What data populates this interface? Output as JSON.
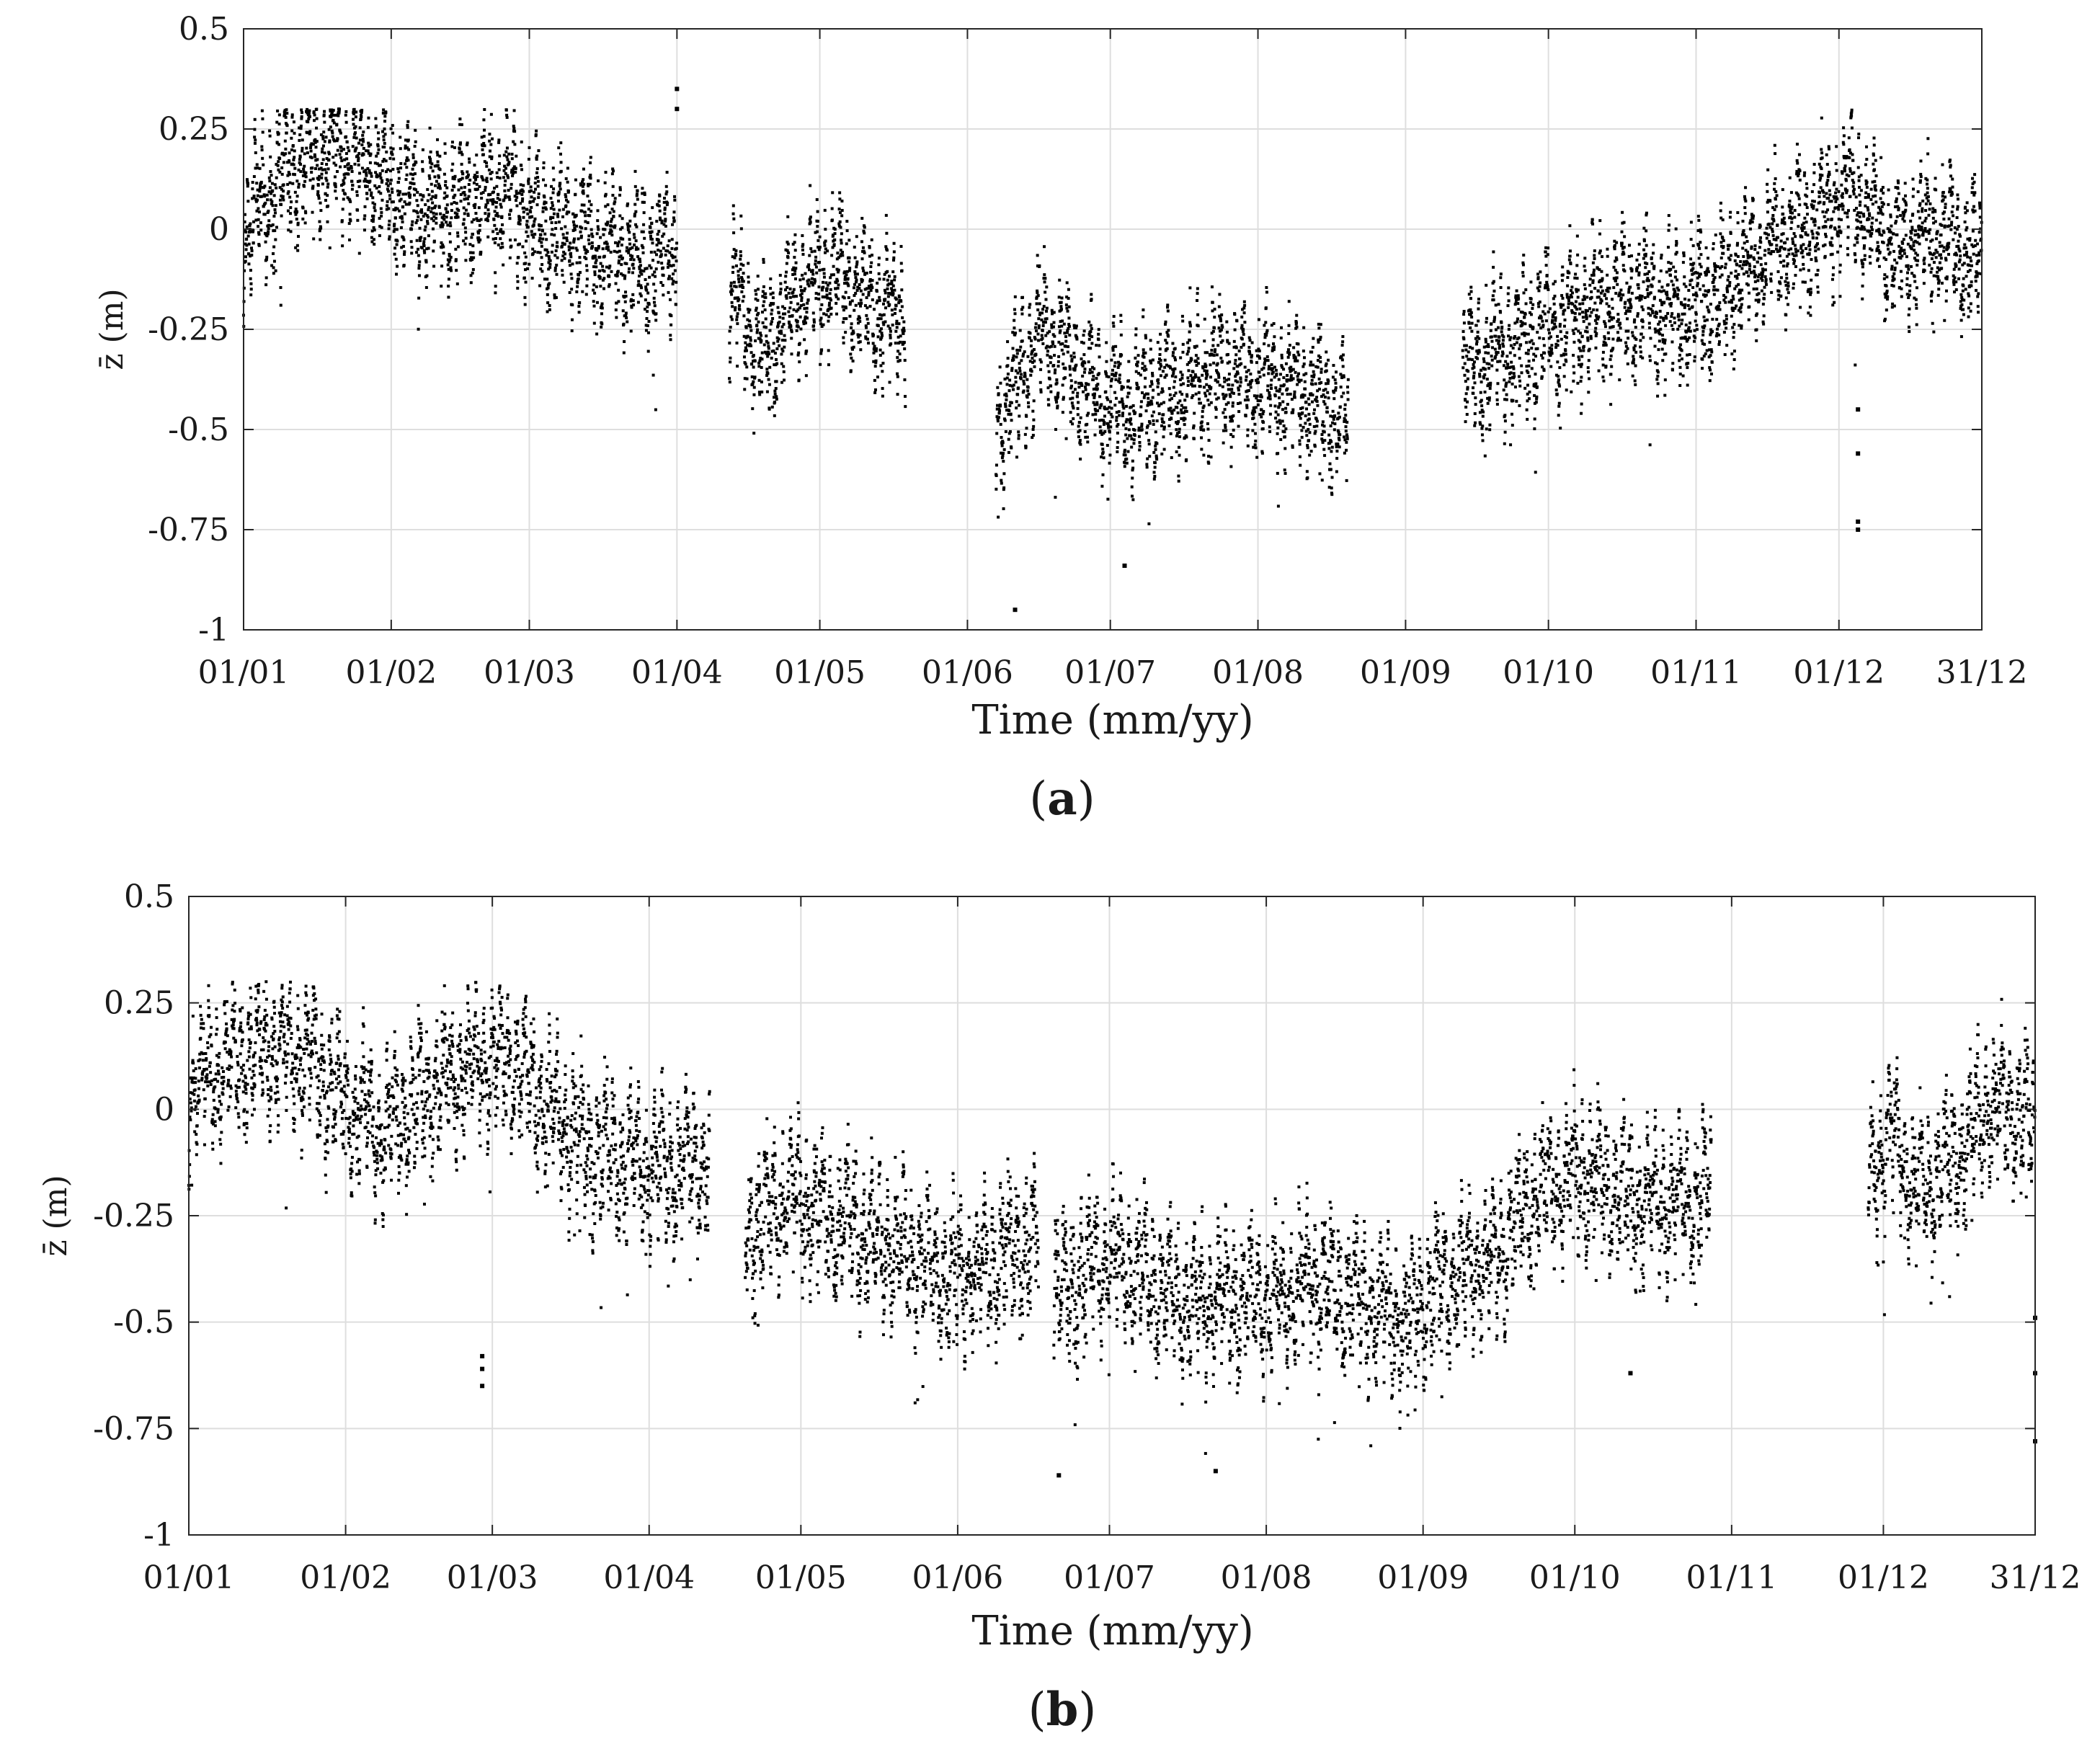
{
  "chart_data": [
    {
      "type": "scatter",
      "panel_label": "a",
      "xlabel": "Time (mm/yy)",
      "ylabel": "z̄ (m)",
      "xlim": [
        "2020-01-01",
        "2020-12-31"
      ],
      "ylim": [
        -1,
        0.5
      ],
      "grid": true,
      "marker_color": "#000000",
      "x_ticks": [
        {
          "date": "2020-01-01",
          "label": "01/01"
        },
        {
          "date": "2020-02-01",
          "label": "01/02"
        },
        {
          "date": "2020-03-01",
          "label": "01/03"
        },
        {
          "date": "2020-04-01",
          "label": "01/04"
        },
        {
          "date": "2020-05-01",
          "label": "01/05"
        },
        {
          "date": "2020-06-01",
          "label": "01/06"
        },
        {
          "date": "2020-07-01",
          "label": "01/07"
        },
        {
          "date": "2020-08-01",
          "label": "01/08"
        },
        {
          "date": "2020-09-01",
          "label": "01/09"
        },
        {
          "date": "2020-10-01",
          "label": "01/10"
        },
        {
          "date": "2020-11-01",
          "label": "01/11"
        },
        {
          "date": "2020-12-01",
          "label": "01/12"
        },
        {
          "date": "2020-12-31",
          "label": "31/12"
        }
      ],
      "y_ticks": [
        {
          "value": 0.5,
          "label": "0.5"
        },
        {
          "value": 0.25,
          "label": "0.25"
        },
        {
          "value": 0,
          "label": "0"
        },
        {
          "value": -0.25,
          "label": "-0.25"
        },
        {
          "value": -0.5,
          "label": "-0.5"
        },
        {
          "value": -0.75,
          "label": "-0.75"
        },
        {
          "value": -1,
          "label": "-1"
        }
      ],
      "segments": [
        {
          "start": "2020-01-01",
          "end": "2020-04-01",
          "anchors": [
            0.0,
            0.15,
            0.2,
            0.15,
            0.05,
            0.05,
            0.1,
            0.0,
            -0.02,
            -0.08,
            -0.05
          ]
        },
        {
          "start": "2020-04-12",
          "end": "2020-05-19",
          "anchors": [
            -0.15,
            -0.3,
            -0.15,
            -0.1,
            -0.2,
            -0.2
          ]
        },
        {
          "start": "2020-06-07",
          "end": "2020-08-20",
          "anchors": [
            -0.5,
            -0.25,
            -0.38,
            -0.45,
            -0.4,
            -0.35,
            -0.38,
            -0.4,
            -0.48
          ]
        },
        {
          "start": "2020-09-13",
          "end": "2020-12-31",
          "anchors": [
            -0.35,
            -0.3,
            -0.25,
            -0.2,
            -0.18,
            -0.2,
            -0.15,
            -0.05,
            0.0,
            0.1,
            -0.05,
            0.0,
            -0.1
          ]
        }
      ],
      "outliers": [
        {
          "x": "2020-04-01",
          "y": 0.3
        },
        {
          "x": "2020-04-01",
          "y": 0.35
        },
        {
          "x": "2020-06-11",
          "y": -0.95
        },
        {
          "x": "2020-07-04",
          "y": -0.84
        },
        {
          "x": "2020-12-05",
          "y": -0.45
        },
        {
          "x": "2020-12-05",
          "y": -0.56
        },
        {
          "x": "2020-12-05",
          "y": -0.73
        },
        {
          "x": "2020-12-05",
          "y": -0.75
        }
      ]
    },
    {
      "type": "scatter",
      "panel_label": "b",
      "xlabel": "Time (mm/yy)",
      "ylabel": "z̄ (m)",
      "xlim": [
        "2020-01-01",
        "2020-12-31"
      ],
      "ylim": [
        -1,
        0.5
      ],
      "grid": true,
      "marker_color": "#000000",
      "x_ticks": [
        {
          "date": "2020-01-01",
          "label": "01/01"
        },
        {
          "date": "2020-02-01",
          "label": "01/02"
        },
        {
          "date": "2020-03-01",
          "label": "01/03"
        },
        {
          "date": "2020-04-01",
          "label": "01/04"
        },
        {
          "date": "2020-05-01",
          "label": "01/05"
        },
        {
          "date": "2020-06-01",
          "label": "01/06"
        },
        {
          "date": "2020-07-01",
          "label": "01/07"
        },
        {
          "date": "2020-08-01",
          "label": "01/08"
        },
        {
          "date": "2020-09-01",
          "label": "01/09"
        },
        {
          "date": "2020-10-01",
          "label": "01/10"
        },
        {
          "date": "2020-11-01",
          "label": "01/11"
        },
        {
          "date": "2020-12-01",
          "label": "01/12"
        },
        {
          "date": "2020-12-31",
          "label": "31/12"
        }
      ],
      "y_ticks": [
        {
          "value": 0.5,
          "label": "0.5"
        },
        {
          "value": 0.25,
          "label": "0.25"
        },
        {
          "value": 0,
          "label": "0"
        },
        {
          "value": -0.25,
          "label": "-0.25"
        },
        {
          "value": -0.5,
          "label": "-0.5"
        },
        {
          "value": -0.75,
          "label": "-0.75"
        },
        {
          "value": -1,
          "label": "-1"
        }
      ],
      "segments": [
        {
          "start": "2020-01-01",
          "end": "2020-04-13",
          "anchors": [
            0.05,
            0.1,
            0.15,
            0.12,
            0.0,
            -0.05,
            0.05,
            0.1,
            0.12,
            0.0,
            -0.1,
            -0.12,
            -0.15,
            -0.12
          ]
        },
        {
          "start": "2020-04-20",
          "end": "2020-06-17",
          "anchors": [
            -0.3,
            -0.2,
            -0.25,
            -0.3,
            -0.35,
            -0.4,
            -0.35,
            -0.3
          ]
        },
        {
          "start": "2020-06-20",
          "end": "2020-10-28",
          "anchors": [
            -0.45,
            -0.35,
            -0.38,
            -0.45,
            -0.45,
            -0.45,
            -0.4,
            -0.45,
            -0.5,
            -0.4,
            -0.35,
            -0.2,
            -0.15,
            -0.2,
            -0.22,
            -0.2
          ]
        },
        {
          "start": "2020-11-28",
          "end": "2020-12-31",
          "anchors": [
            -0.15,
            -0.05,
            -0.2,
            -0.15,
            -0.1,
            0.0,
            0.0,
            -0.05
          ]
        }
      ],
      "outliers": [
        {
          "x": "2020-02-28",
          "y": -0.58
        },
        {
          "x": "2020-02-28",
          "y": -0.61
        },
        {
          "x": "2020-02-28",
          "y": -0.65
        },
        {
          "x": "2020-06-21",
          "y": -0.86
        },
        {
          "x": "2020-07-22",
          "y": -0.85
        },
        {
          "x": "2020-10-12",
          "y": -0.62
        },
        {
          "x": "2020-12-31",
          "y": -0.49
        },
        {
          "x": "2020-12-31",
          "y": -0.62
        },
        {
          "x": "2020-12-31",
          "y": -0.78
        }
      ]
    }
  ]
}
